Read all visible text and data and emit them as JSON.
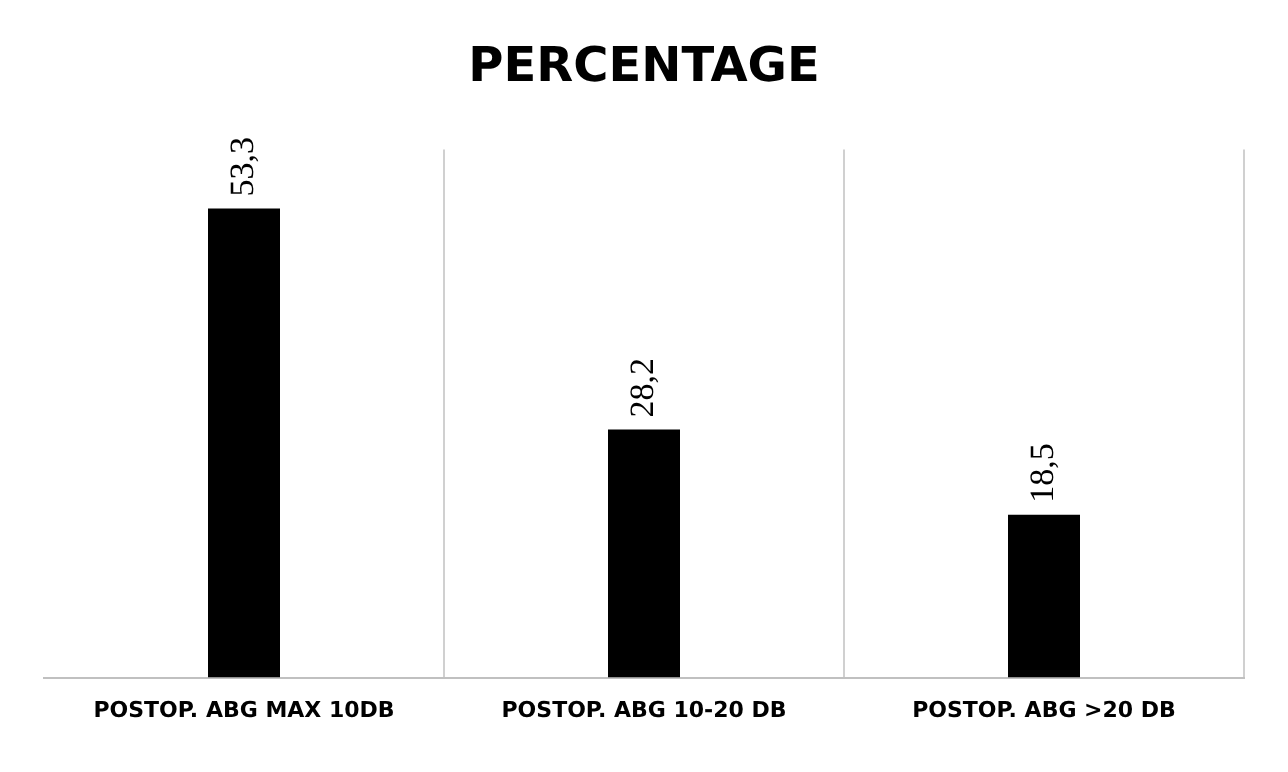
{
  "chart_data": {
    "type": "bar",
    "title": "PERCENTAGE",
    "categories": [
      "POSTOP. ABG MAX 10DB",
      "POSTOP. ABG 10-20 DB",
      "POSTOP. ABG >20 DB"
    ],
    "values": [
      53.3,
      28.2,
      18.5
    ],
    "value_labels": [
      "53,3",
      "28,2",
      "18,5"
    ],
    "color": "#000000",
    "grid": "x",
    "legend": false
  }
}
